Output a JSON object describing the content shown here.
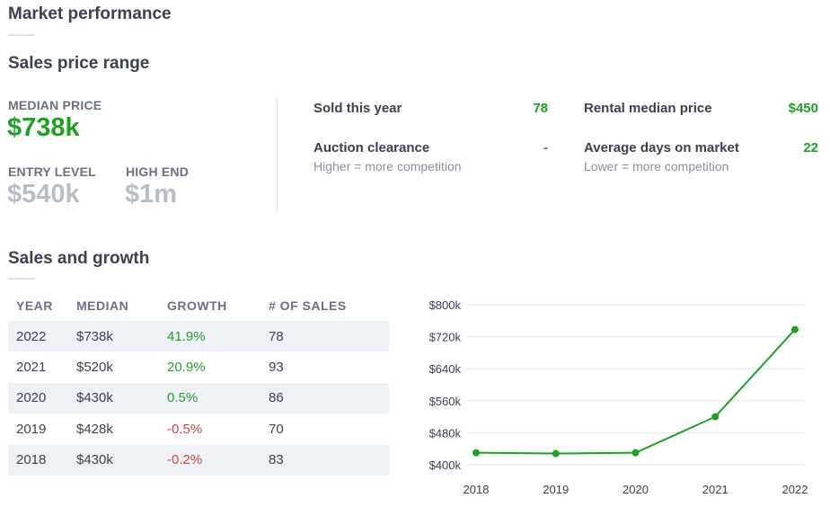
{
  "header": {
    "title": "Market performance"
  },
  "price_range": {
    "title": "Sales price range",
    "median_label": "MEDIAN PRICE",
    "median_value": "$738k",
    "entry_label": "ENTRY LEVEL",
    "entry_value": "$540k",
    "high_label": "HIGH END",
    "high_value": "$1m"
  },
  "stats": {
    "sold_label": "Sold this year",
    "sold_value": "78",
    "rental_label": "Rental median price",
    "rental_value": "$450",
    "auction_label": "Auction clearance",
    "auction_sub": "Higher = more competition",
    "auction_value": "-",
    "days_label": "Average days on market",
    "days_sub": "Lower = more competition",
    "days_value": "22"
  },
  "growth": {
    "title": "Sales and growth",
    "columns": [
      "YEAR",
      "MEDIAN",
      "GROWTH",
      "# OF SALES"
    ],
    "rows": [
      {
        "year": "2022",
        "median": "$738k",
        "growth": "41.9%",
        "sales": "78"
      },
      {
        "year": "2021",
        "median": "$520k",
        "growth": "20.9%",
        "sales": "93"
      },
      {
        "year": "2020",
        "median": "$430k",
        "growth": "0.5%",
        "sales": "86"
      },
      {
        "year": "2019",
        "median": "$428k",
        "growth": "-0.5%",
        "sales": "70"
      },
      {
        "year": "2018",
        "median": "$430k",
        "growth": "-0.2%",
        "sales": "83"
      }
    ]
  },
  "colors": {
    "accent": "#1fa024",
    "negative": "#d64545",
    "shade": "#eef1f5"
  },
  "chart_data": {
    "type": "line",
    "categories": [
      "2018",
      "2019",
      "2020",
      "2021",
      "2022"
    ],
    "series": [
      {
        "values": [
          430,
          428,
          430,
          520,
          738
        ]
      }
    ],
    "ylim": [
      400,
      800
    ],
    "yticks": [
      400,
      480,
      560,
      640,
      720,
      800
    ],
    "ytick_labels": [
      "$400k",
      "$480k",
      "$560k",
      "$640k",
      "$720k",
      "$800k"
    ],
    "grid": true,
    "color": "#1fa024"
  }
}
